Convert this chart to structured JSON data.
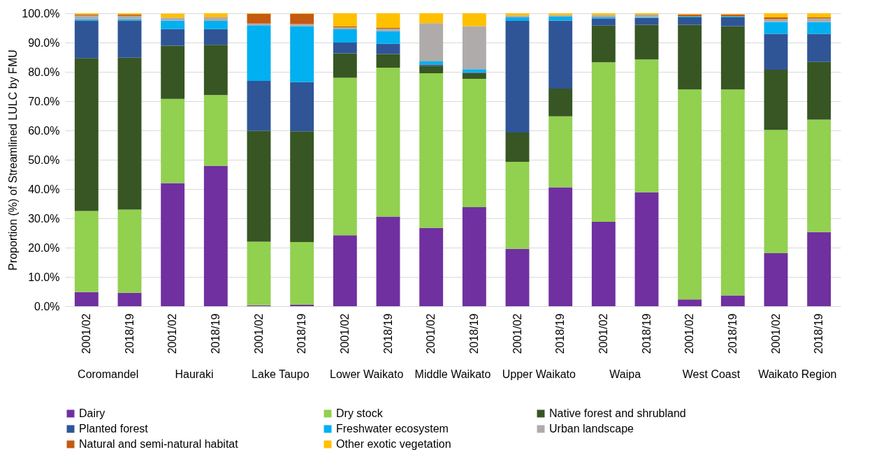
{
  "chart_data": {
    "type": "bar",
    "stacked": true,
    "ylabel": "Proportion (%) of Streamlined LULC by FMU",
    "categories": [
      "2001/02",
      "2018/19",
      "2001/02",
      "2018/19",
      "2001/02",
      "2018/19",
      "2001/02",
      "2018/19",
      "2001/02",
      "2018/19",
      "2001/02",
      "2018/19",
      "2001/02",
      "2018/19",
      "2001/02",
      "2018/19",
      "2001/02",
      "2018/19"
    ],
    "annotations": [
      "Coromandel",
      "Hauraki",
      "Lake Taupo",
      "Lower Waikato",
      "Middle Waikato",
      "Upper Waikato",
      "Waipa",
      "West Coast",
      "Waikato Region"
    ],
    "ylim": [
      0,
      100
    ],
    "yticks": [
      {
        "value": 0,
        "label": "0.0%"
      },
      {
        "value": 10,
        "label": "10.0%"
      },
      {
        "value": 20,
        "label": "20.0%"
      },
      {
        "value": 30,
        "label": "30.0%"
      },
      {
        "value": 40,
        "label": "40.0%"
      },
      {
        "value": 50,
        "label": "50.0%"
      },
      {
        "value": 60,
        "label": "60.0%"
      },
      {
        "value": 70,
        "label": "70.0%"
      },
      {
        "value": 80,
        "label": "80.0%"
      },
      {
        "value": 90,
        "label": "90.0%"
      },
      {
        "value": 100,
        "label": "100.0%"
      }
    ],
    "grid": "y",
    "legend": "bottom",
    "series": [
      {
        "name": "Dairy",
        "color": "#7030a0",
        "values": [
          4.8,
          4.6,
          42.0,
          47.9,
          0.3,
          0.5,
          24.2,
          30.6,
          26.7,
          33.8,
          19.6,
          40.6,
          28.8,
          38.8,
          2.3,
          3.7,
          18.1,
          25.3
        ]
      },
      {
        "name": "Dry stock",
        "color": "#92d050",
        "values": [
          27.7,
          28.4,
          28.8,
          24.2,
          21.7,
          21.4,
          53.8,
          50.8,
          52.8,
          43.8,
          29.7,
          24.2,
          54.5,
          45.4,
          71.7,
          70.3,
          42.1,
          38.4
        ]
      },
      {
        "name": "Native forest and shrubland",
        "color": "#375623",
        "values": [
          52.2,
          51.8,
          18.1,
          17.1,
          37.9,
          37.8,
          8.3,
          4.7,
          2.6,
          2.0,
          10.0,
          9.5,
          12.5,
          11.9,
          22.1,
          21.6,
          20.5,
          19.7
        ]
      },
      {
        "name": "Planted forest",
        "color": "#2f5597",
        "values": [
          12.8,
          12.7,
          5.7,
          5.4,
          17.0,
          16.8,
          3.7,
          3.5,
          0.4,
          0.2,
          38.1,
          23.2,
          2.4,
          2.3,
          2.5,
          3.0,
          12.3,
          9.6
        ]
      },
      {
        "name": "Freshwater ecosystem",
        "color": "#00b0f0",
        "values": [
          0.5,
          0.5,
          2.9,
          2.8,
          19.0,
          19.1,
          4.5,
          4.3,
          1.1,
          1.1,
          1.2,
          1.3,
          0.4,
          0.3,
          0.3,
          0.3,
          4.0,
          4.0
        ]
      },
      {
        "name": "Urban landscape",
        "color": "#afabab",
        "values": [
          1.2,
          1.1,
          1.0,
          1.2,
          0.6,
          0.7,
          0.7,
          0.8,
          13.0,
          14.7,
          0.6,
          0.6,
          0.8,
          0.8,
          null,
          null,
          1.0,
          1.2
        ]
      },
      {
        "name": "Natural and semi-natural habitat",
        "color": "#c55a11",
        "values": [
          0.4,
          0.4,
          null,
          0.1,
          3.3,
          3.5,
          0.3,
          0.3,
          0,
          0,
          0,
          0,
          0,
          0,
          0.6,
          0.6,
          0.6,
          0.4
        ]
      },
      {
        "name": "Other exotic vegetation",
        "color": "#ffc000",
        "values": [
          0.4,
          0.5,
          1.4,
          1.3,
          0.2,
          0.2,
          4.5,
          5.0,
          3.4,
          4.4,
          0.8,
          0.6,
          0.6,
          0.5,
          0.2,
          0.2,
          1.4,
          1.4
        ]
      }
    ]
  }
}
